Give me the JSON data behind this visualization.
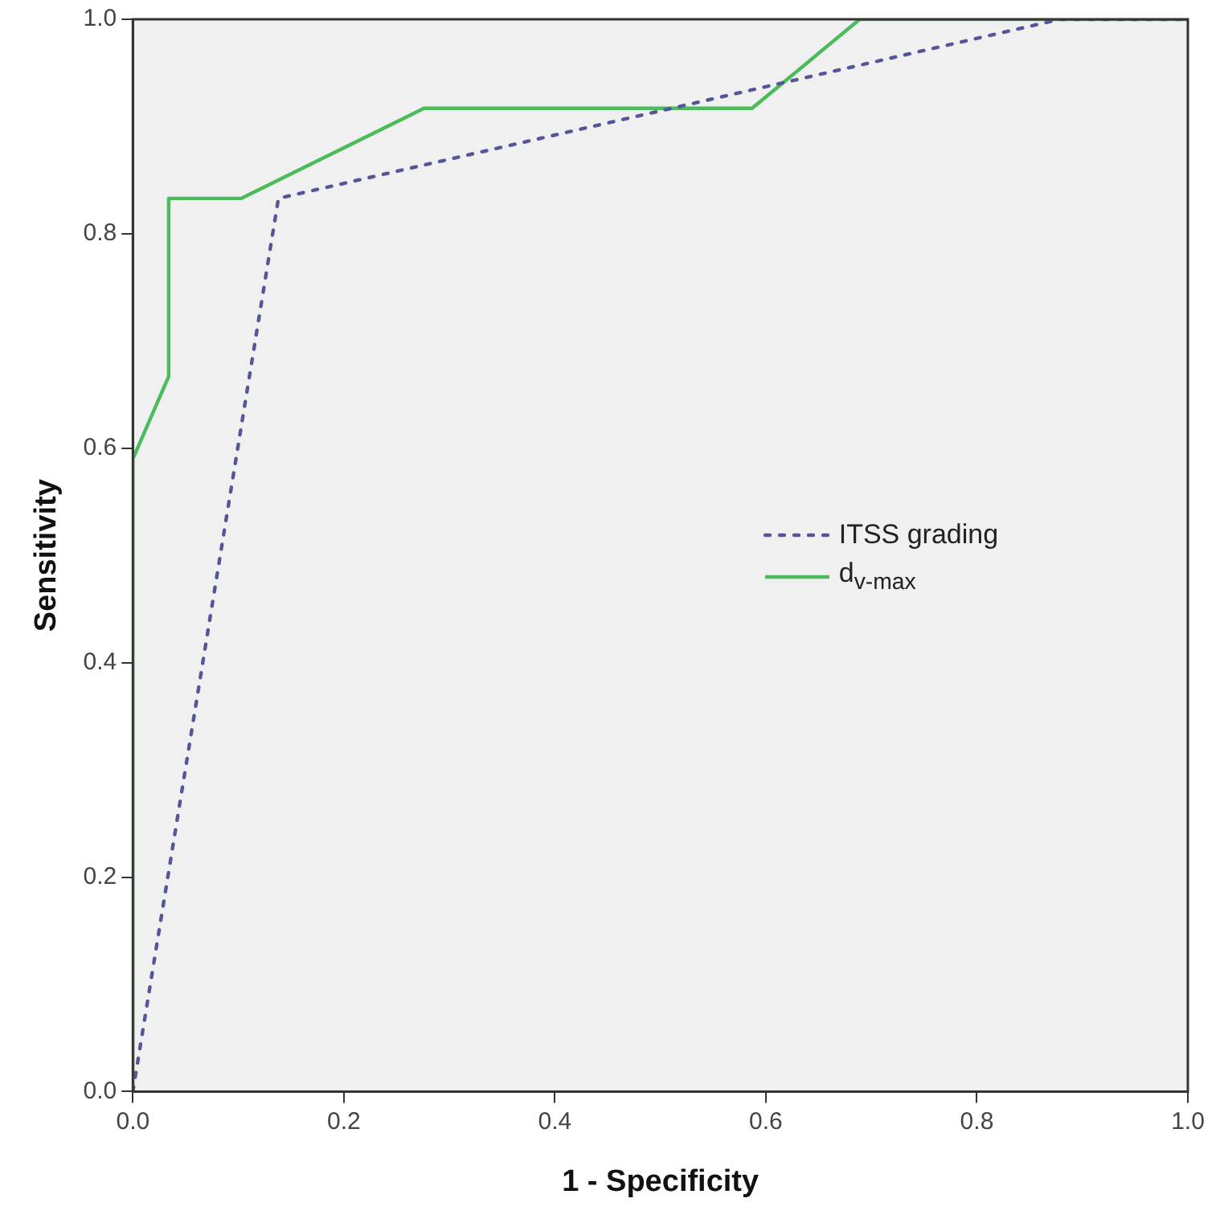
{
  "chart_data": {
    "type": "line",
    "xlabel": "1 - Specificity",
    "ylabel": "Sensitivity",
    "xlim": [
      0,
      1
    ],
    "ylim": [
      0,
      1
    ],
    "xticks": [
      {
        "value": 0,
        "label": "0.0"
      },
      {
        "value": 0.2,
        "label": "0.2"
      },
      {
        "value": 0.4,
        "label": "0.4"
      },
      {
        "value": 0.6,
        "label": "0.6"
      },
      {
        "value": 0.8,
        "label": "0.8"
      },
      {
        "value": 1,
        "label": "1.0"
      }
    ],
    "yticks": [
      {
        "value": 0,
        "label": "0.0"
      },
      {
        "value": 0.2,
        "label": "0.2"
      },
      {
        "value": 0.4,
        "label": "0.4"
      },
      {
        "value": 0.6,
        "label": "0.6"
      },
      {
        "value": 0.8,
        "label": "0.8"
      },
      {
        "value": 1,
        "label": "1.0"
      }
    ],
    "grid": false,
    "legend": "right",
    "marker": "none",
    "series": [
      {
        "name": "ITSS grading",
        "color": "#55559a",
        "line_style": "dotted",
        "x": [
          0,
          0.138,
          0.879,
          1
        ],
        "values": [
          0,
          0.833,
          1,
          1
        ]
      },
      {
        "name": "d$_{v-max}$",
        "color": "#4cbb5c",
        "line_style": "solid",
        "x": [
          0,
          0,
          0.034,
          0.034,
          0.103,
          0.276,
          0.587,
          0.689,
          1
        ],
        "values": [
          0,
          0.59,
          0.667,
          0.833,
          0.833,
          0.917,
          0.917,
          1,
          1
        ]
      }
    ]
  }
}
